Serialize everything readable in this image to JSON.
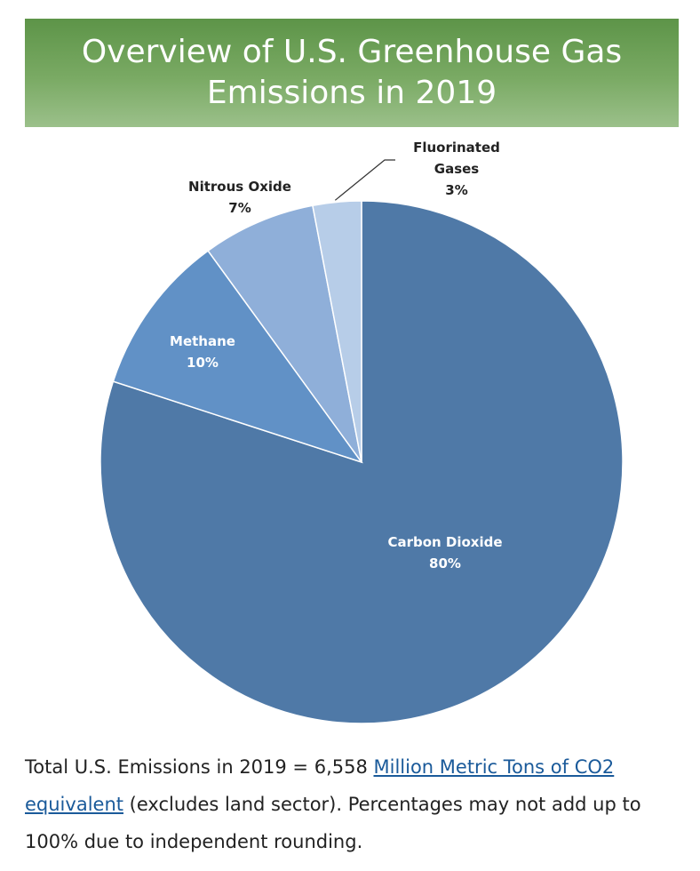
{
  "header": {
    "title_line1": "Overview of U.S. Greenhouse Gas",
    "title_line2": "Emissions in 2019"
  },
  "chart_data": {
    "type": "pie",
    "title": "Overview of U.S. Greenhouse Gas Emissions in 2019",
    "slices": [
      {
        "name": "Carbon Dioxide",
        "value": 80,
        "label": "80%",
        "color": "#4f79a7"
      },
      {
        "name": "Methane",
        "value": 10,
        "label": "10%",
        "color": "#6191c6"
      },
      {
        "name": "Nitrous Oxide",
        "value": 7,
        "label": "7%",
        "color": "#8fafd9"
      },
      {
        "name": "Fluorinated Gases",
        "value": 3,
        "label": "3%",
        "color": "#b7cde8"
      }
    ],
    "start": "12 o'clock",
    "direction": "clockwise"
  },
  "caption": {
    "prefix": "Total U.S. Emissions in 2019 = 6,558 ",
    "link_text": "Million Metric Tons of CO2 equivalent",
    "suffix": " (excludes land sector). Percentages may not add up to 100% due to independent rounding."
  }
}
